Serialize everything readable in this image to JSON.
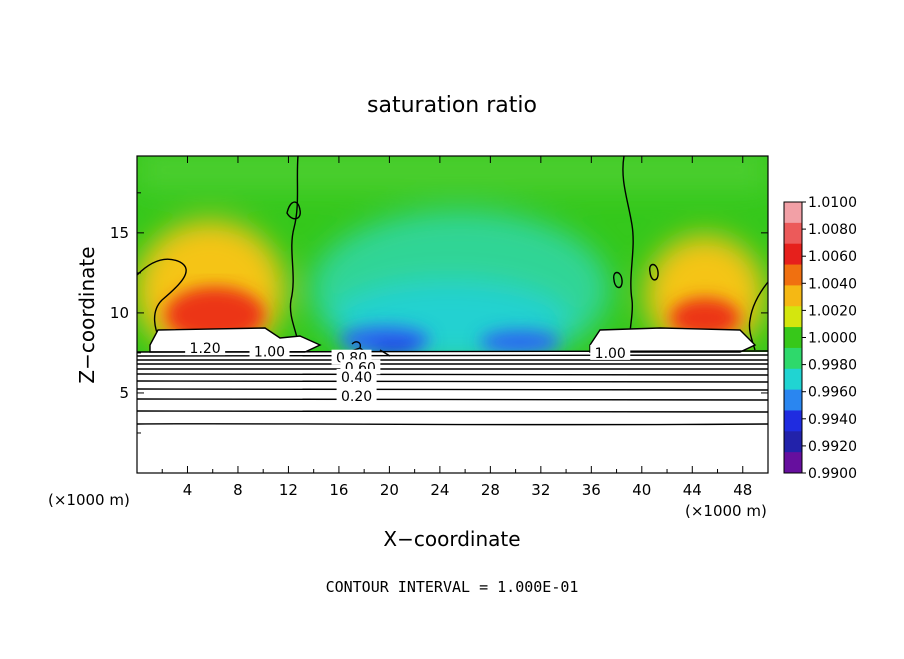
{
  "chart_data": {
    "type": "heatmap",
    "title": "saturation ratio",
    "xlabel": "X−coordinate",
    "ylabel": "Z−coordinate",
    "x_unit_label": "(×1000 m)",
    "y_unit_label": "(×1000 m)",
    "xlim": [
      0,
      50
    ],
    "ylim": [
      0,
      19.8
    ],
    "x_ticks": [
      4,
      8,
      12,
      16,
      20,
      24,
      28,
      32,
      36,
      40,
      44,
      48
    ],
    "y_ticks": [
      5,
      10,
      15
    ],
    "colorbar": {
      "labels": [
        "1.0100",
        "1.0080",
        "1.0060",
        "1.0040",
        "1.0020",
        "1.0000",
        "0.9980",
        "0.9960",
        "0.9940",
        "0.9920",
        "0.9900"
      ],
      "colors": [
        "#f2a0a6",
        "#ec5a5a",
        "#e6201c",
        "#f07010",
        "#f5b814",
        "#d4e60e",
        "#37c81a",
        "#2ed96b",
        "#20d4d2",
        "#2a86f0",
        "#1f2ce0",
        "#2222aa",
        "#660f9e"
      ]
    },
    "contour_labels": [
      {
        "text": "1.20",
        "x": 5.4,
        "z": 7.8
      },
      {
        "text": "1.00",
        "x": 10.5,
        "z": 7.6
      },
      {
        "text": "0.80",
        "x": 17.0,
        "z": 7.2
      },
      {
        "text": "0.60",
        "x": 17.7,
        "z": 6.6
      },
      {
        "text": "0.40",
        "x": 17.4,
        "z": 6.0
      },
      {
        "text": "0.20",
        "x": 17.4,
        "z": 4.8
      },
      {
        "text": "1.00",
        "x": 37.5,
        "z": 7.5
      }
    ],
    "footer": "CONTOUR INTERVAL = 1.000E-01"
  }
}
